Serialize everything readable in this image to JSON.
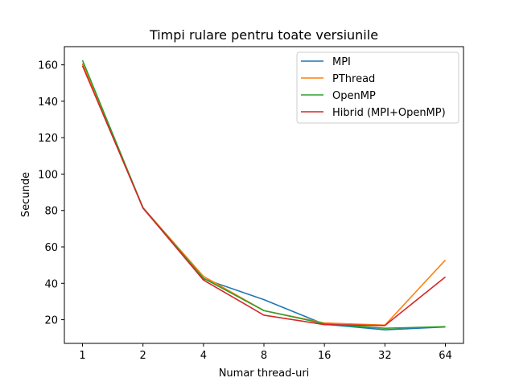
{
  "chart_data": {
    "type": "line",
    "title": "Timpi rulare pentru toate versiunile",
    "xlabel": "Numar thread-uri",
    "ylabel": "Secunde",
    "categories": [
      "1",
      "2",
      "4",
      "8",
      "16",
      "32",
      "64"
    ],
    "ylim": [
      7,
      170
    ],
    "yticks": [
      20,
      40,
      60,
      80,
      100,
      120,
      140,
      160
    ],
    "grid": false,
    "legend_position": "top-right",
    "series": [
      {
        "name": "MPI",
        "color": "#1f77b4",
        "values": [
          160.5,
          81.3,
          42.5,
          31.0,
          17.5,
          14.5,
          16.0
        ]
      },
      {
        "name": "PThread",
        "color": "#ff7f0e",
        "values": [
          160.8,
          81.6,
          43.8,
          25.0,
          18.2,
          17.0,
          52.8
        ]
      },
      {
        "name": "OpenMP",
        "color": "#2ca02c",
        "values": [
          162.5,
          81.5,
          42.8,
          25.0,
          17.8,
          15.3,
          16.2
        ]
      },
      {
        "name": "Hibrid (MPI+OpenMP)",
        "color": "#d62728",
        "values": [
          159.5,
          81.4,
          41.8,
          22.5,
          17.3,
          16.8,
          43.5
        ]
      }
    ]
  }
}
